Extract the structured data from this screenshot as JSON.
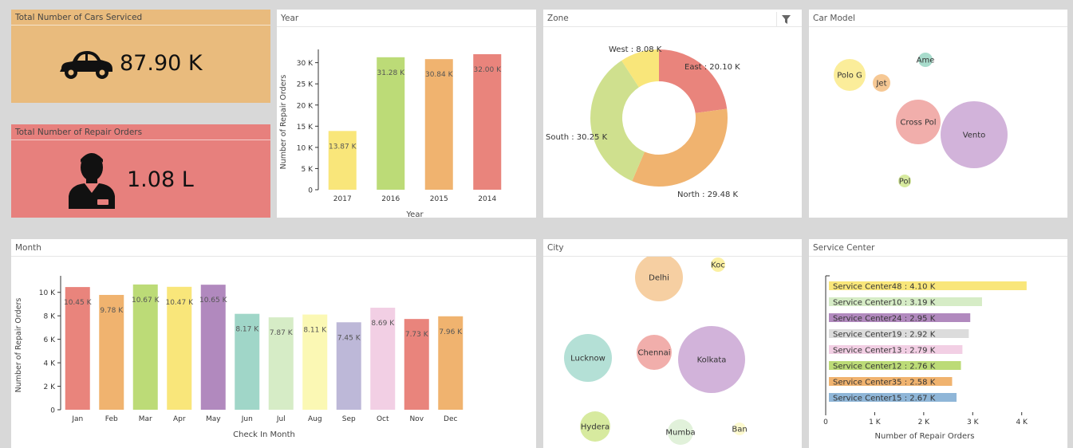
{
  "kpis": [
    {
      "title": "Total Number of Cars Serviced",
      "value": "87.90 K",
      "icon": "car-icon",
      "bg": "#e9bb7d"
    },
    {
      "title": "Total Number of Repair Orders",
      "value": "1.08 L",
      "icon": "mechanic-icon",
      "bg": "#e7807d"
    }
  ],
  "panels": {
    "year": "Year",
    "zone": "Zone",
    "car_model": "Car Model",
    "month": "Month",
    "city": "City",
    "service_center": "Service Center"
  },
  "chart_data": [
    {
      "id": "year",
      "type": "bar",
      "categories": [
        "2017",
        "2016",
        "2015",
        "2014"
      ],
      "values": [
        13.87,
        31.28,
        30.84,
        32.0
      ],
      "labels": [
        "13.87 K",
        "31.28 K",
        "30.84 K",
        "32.00 K"
      ],
      "colors": [
        "#f9e67a",
        "#bcdb77",
        "#f0b36f",
        "#e9847c"
      ],
      "ylim": [
        0,
        32
      ],
      "yticks": [
        0,
        5,
        10,
        15,
        20,
        25,
        30
      ],
      "ytick_labels": [
        "0",
        "5 K",
        "10 K",
        "15 K",
        "20 K",
        "25 K",
        "30 K"
      ],
      "xlabel": "Year",
      "ylabel": "Number of Repair Orders"
    },
    {
      "id": "zone",
      "type": "pie",
      "donut": true,
      "slices": [
        {
          "name": "East",
          "value": 20.1,
          "label": "East : 20.10 K",
          "color": "#e9847c"
        },
        {
          "name": "North",
          "value": 29.48,
          "label": "North : 29.48 K",
          "color": "#f0b36f"
        },
        {
          "name": "South",
          "value": 30.25,
          "label": "South : 30.25 K",
          "color": "#cfe08e"
        },
        {
          "name": "West",
          "value": 8.08,
          "label": "West : 8.08 K",
          "color": "#f9e67a"
        }
      ]
    },
    {
      "id": "car_model",
      "type": "scatter",
      "bubbles": [
        {
          "label": "Polo G",
          "color": "#fbed9a"
        },
        {
          "label": "Jet",
          "color": "#f6c894"
        },
        {
          "label": "Ame",
          "color": "#a8dccc"
        },
        {
          "label": "Cross Pol",
          "color": "#f1aeab"
        },
        {
          "label": "Vento",
          "color": "#d2b3da"
        },
        {
          "label": "Pol",
          "color": "#d7ea9f"
        }
      ]
    },
    {
      "id": "month",
      "type": "bar",
      "categories": [
        "Jan",
        "Feb",
        "Mar",
        "Apr",
        "May",
        "Jun",
        "Jul",
        "Aug",
        "Sep",
        "Oct",
        "Nov",
        "Dec"
      ],
      "values": [
        10.45,
        9.78,
        10.67,
        10.47,
        10.65,
        8.17,
        7.87,
        8.11,
        7.45,
        8.69,
        7.73,
        7.96
      ],
      "labels": [
        "10.45 K",
        "9.78 K",
        "10.67 K",
        "10.47 K",
        "10.65 K",
        "8.17 K",
        "7.87 K",
        "8.11 K",
        "7.45 K",
        "8.69 K",
        "7.73 K",
        "7.96 K"
      ],
      "colors": [
        "#e9847c",
        "#f0b36f",
        "#bcdb77",
        "#f9e67a",
        "#b189be",
        "#a0d6c8",
        "#d6ecc6",
        "#fbf8b4",
        "#bdb8d8",
        "#f2cfe4",
        "#e9847c",
        "#f0b36f"
      ],
      "ylim": [
        0,
        11
      ],
      "yticks": [
        0,
        2,
        4,
        6,
        8,
        10
      ],
      "ytick_labels": [
        "0",
        "2 K",
        "4 K",
        "6 K",
        "8 K",
        "10 K"
      ],
      "xlabel": "Check In Month",
      "ylabel": "Number of Repair Orders"
    },
    {
      "id": "city",
      "type": "scatter",
      "bubbles": [
        {
          "label": "Delhi",
          "color": "#f6cfa2"
        },
        {
          "label": "Koc",
          "color": "#fbf0a2"
        },
        {
          "label": "Lucknow",
          "color": "#b4e0d6"
        },
        {
          "label": "Chennai",
          "color": "#f1aeab"
        },
        {
          "label": "Kolkata",
          "color": "#d2b3da"
        },
        {
          "label": "Hydera",
          "color": "#d7ea9f"
        },
        {
          "label": "Mumba",
          "color": "#e1f1da"
        },
        {
          "label": "Ban",
          "color": "#fdfad0"
        }
      ]
    },
    {
      "id": "service_center",
      "type": "bar",
      "orientation": "horizontal",
      "categories": [
        "Service Center48",
        "Service Center10",
        "Service Center24",
        "Service Center19",
        "Service Center13",
        "Service Center12",
        "Service Center35",
        "Service Center15"
      ],
      "values": [
        4.1,
        3.19,
        2.95,
        2.92,
        2.79,
        2.76,
        2.58,
        2.67
      ],
      "labels": [
        "Service Center48 : 4.10 K",
        "Service Center10 : 3.19 K",
        "Service Center24 : 2.95 K",
        "Service Center19 : 2.92 K",
        "Service Center13 : 2.79 K",
        "Service Center12 : 2.76 K",
        "Service Center35 : 2.58 K",
        "Service Center15 : 2.67 K"
      ],
      "colors": [
        "#f9e67a",
        "#d6ecc6",
        "#b189be",
        "#dcdcdc",
        "#f2cfe4",
        "#bcdb77",
        "#f0b36f",
        "#8fb6d8"
      ],
      "xlim": [
        0,
        4.2
      ],
      "xticks": [
        0,
        1,
        2,
        3,
        4
      ],
      "xtick_labels": [
        "0",
        "1 K",
        "2 K",
        "3 K",
        "4 K"
      ],
      "xlabel": "Number of Repair Orders"
    }
  ]
}
